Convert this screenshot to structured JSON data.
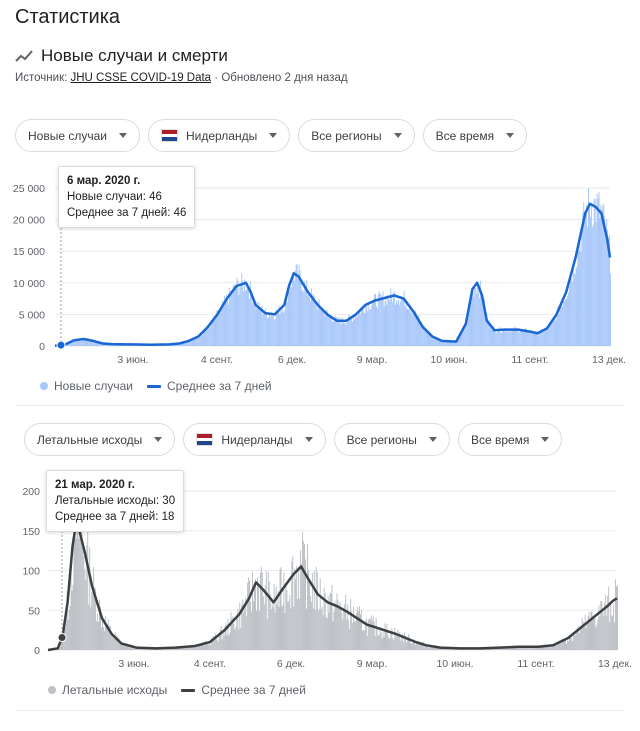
{
  "page_title": "Статистика",
  "section": {
    "title": "Новые случаи и смерти",
    "source_prefix": "Источник: ",
    "source_link": "JHU CSSE COVID-19 Data",
    "updated": " · Обновлено 2 дня назад",
    "icon": "trending-line-icon"
  },
  "colors": {
    "cases_bar": "#a8c7fa",
    "cases_line": "#1a66d2",
    "deaths_bar": "#bdc1c6",
    "deaths_line": "#3c4043",
    "grid": "#e8eaed",
    "flag_red": "#ae1c28",
    "flag_white": "#ffffff",
    "flag_blue": "#21468b"
  },
  "chart_data": [
    {
      "type": "bar",
      "filters": {
        "metric": "Новые случаи",
        "country": "Нидерланды",
        "region": "Все регионы",
        "period": "Все время"
      },
      "x_tick_labels": [
        "3 июн.",
        "4 сент.",
        "6 дек.",
        "9 мар.",
        "10 июн.",
        "11 сент.",
        "13 дек."
      ],
      "y_tick_labels": [
        "0",
        "5 000",
        "10 000",
        "15 000",
        "20 000",
        "25 000"
      ],
      "ylim": [
        0,
        25000
      ],
      "legend": [
        "Новые случаи",
        "Среднее за 7 дней"
      ],
      "tooltip": {
        "date": "6 мар. 2020 г.",
        "line1": "Новые случаи: 46",
        "line2": "Среднее за 7 дней: 46"
      },
      "series_anchor_points": [
        [
          0,
          46
        ],
        [
          10,
          200
        ],
        [
          20,
          900
        ],
        [
          30,
          1100
        ],
        [
          40,
          800
        ],
        [
          50,
          400
        ],
        [
          60,
          300
        ],
        [
          80,
          250
        ],
        [
          100,
          200
        ],
        [
          120,
          250
        ],
        [
          130,
          400
        ],
        [
          140,
          800
        ],
        [
          150,
          1500
        ],
        [
          160,
          3000
        ],
        [
          170,
          5000
        ],
        [
          180,
          7500
        ],
        [
          190,
          9500
        ],
        [
          200,
          10000
        ],
        [
          205,
          8500
        ],
        [
          210,
          6500
        ],
        [
          220,
          5200
        ],
        [
          230,
          5000
        ],
        [
          240,
          6500
        ],
        [
          245,
          9500
        ],
        [
          250,
          11500
        ],
        [
          255,
          11000
        ],
        [
          265,
          8500
        ],
        [
          275,
          6500
        ],
        [
          285,
          5000
        ],
        [
          295,
          4000
        ],
        [
          305,
          4000
        ],
        [
          315,
          5000
        ],
        [
          325,
          6500
        ],
        [
          335,
          7200
        ],
        [
          345,
          7600
        ],
        [
          355,
          8000
        ],
        [
          365,
          7500
        ],
        [
          375,
          5500
        ],
        [
          385,
          3000
        ],
        [
          395,
          1500
        ],
        [
          405,
          800
        ],
        [
          420,
          700
        ],
        [
          430,
          3500
        ],
        [
          437,
          9000
        ],
        [
          442,
          10000
        ],
        [
          447,
          8000
        ],
        [
          452,
          4000
        ],
        [
          460,
          2500
        ],
        [
          470,
          2600
        ],
        [
          485,
          2600
        ],
        [
          500,
          2200
        ],
        [
          505,
          2000
        ],
        [
          515,
          2800
        ],
        [
          525,
          5000
        ],
        [
          535,
          8500
        ],
        [
          545,
          14000
        ],
        [
          555,
          21000
        ],
        [
          560,
          22500
        ],
        [
          566,
          22000
        ],
        [
          572,
          21000
        ],
        [
          578,
          17000
        ],
        [
          581,
          14000
        ]
      ]
    },
    {
      "type": "bar",
      "filters": {
        "metric": "Летальные исходы",
        "country": "Нидерланды",
        "region": "Все регионы",
        "period": "Все время"
      },
      "x_tick_labels": [
        "3 июн.",
        "4 сент.",
        "6 дек.",
        "9 мар.",
        "10 июн.",
        "11 сент.",
        "13 дек."
      ],
      "y_tick_labels": [
        "0",
        "50",
        "100",
        "150",
        "200"
      ],
      "ylim": [
        0,
        200
      ],
      "legend": [
        "Летальные исходы",
        "Среднее за 7 дней"
      ],
      "tooltip": {
        "date": "21 мар. 2020 г.",
        "line1": "Летальные исходы: 30",
        "line2": "Среднее за 7 дней: 18"
      },
      "series_anchor_points": [
        [
          0,
          0
        ],
        [
          10,
          2
        ],
        [
          15,
          18
        ],
        [
          20,
          60
        ],
        [
          25,
          130
        ],
        [
          28,
          155
        ],
        [
          32,
          150
        ],
        [
          38,
          120
        ],
        [
          45,
          80
        ],
        [
          55,
          40
        ],
        [
          65,
          20
        ],
        [
          75,
          8
        ],
        [
          90,
          3
        ],
        [
          110,
          2
        ],
        [
          130,
          3
        ],
        [
          150,
          5
        ],
        [
          165,
          10
        ],
        [
          180,
          25
        ],
        [
          195,
          45
        ],
        [
          205,
          65
        ],
        [
          212,
          85
        ],
        [
          220,
          75
        ],
        [
          230,
          60
        ],
        [
          240,
          78
        ],
        [
          250,
          95
        ],
        [
          258,
          105
        ],
        [
          265,
          90
        ],
        [
          275,
          70
        ],
        [
          285,
          60
        ],
        [
          295,
          55
        ],
        [
          305,
          48
        ],
        [
          315,
          40
        ],
        [
          325,
          32
        ],
        [
          335,
          28
        ],
        [
          345,
          24
        ],
        [
          355,
          20
        ],
        [
          365,
          15
        ],
        [
          375,
          10
        ],
        [
          385,
          6
        ],
        [
          400,
          3
        ],
        [
          420,
          2
        ],
        [
          440,
          2
        ],
        [
          460,
          3
        ],
        [
          480,
          4
        ],
        [
          500,
          4
        ],
        [
          515,
          6
        ],
        [
          530,
          15
        ],
        [
          545,
          30
        ],
        [
          560,
          45
        ],
        [
          570,
          55
        ],
        [
          576,
          62
        ],
        [
          580,
          65
        ]
      ]
    }
  ]
}
